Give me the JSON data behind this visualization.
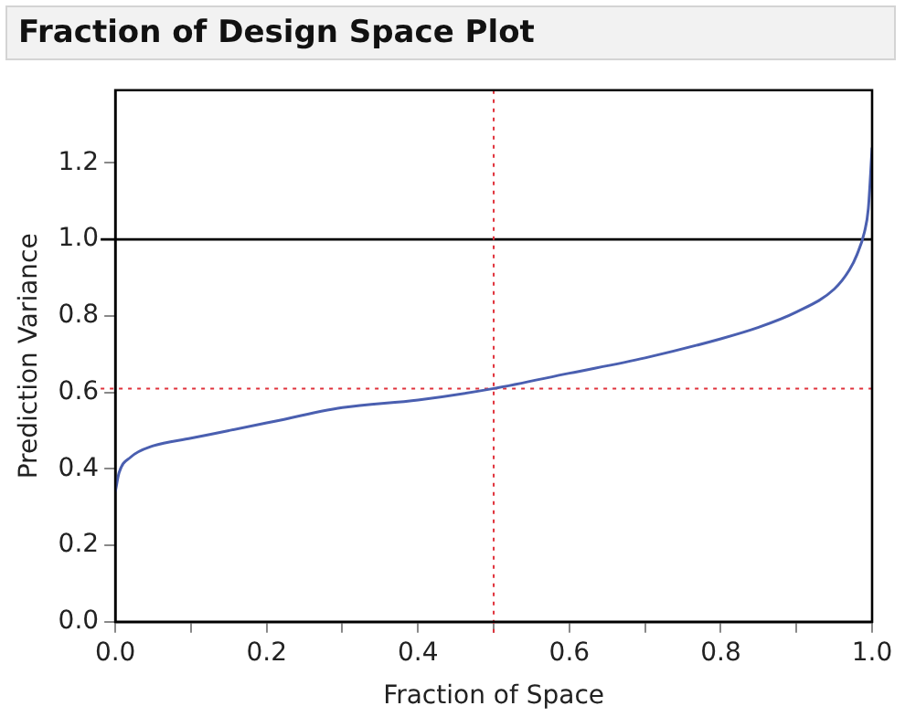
{
  "chart_data": {
    "type": "line",
    "title": "Fraction of Design Space Plot",
    "xlabel": "Fraction of Space",
    "ylabel": "Prediction Variance",
    "x": [
      0,
      0.005,
      0.02,
      0.05,
      0.1,
      0.15,
      0.2,
      0.3,
      0.4,
      0.5,
      0.6,
      0.7,
      0.8,
      0.85,
      0.9,
      0.95,
      0.97,
      0.98,
      0.99,
      0.995,
      1.0
    ],
    "series": [
      {
        "color": "#4a5fb0",
        "values": [
          0.34,
          0.39,
          0.43,
          0.46,
          0.48,
          0.5,
          0.52,
          0.56,
          0.58,
          0.61,
          0.65,
          0.69,
          0.74,
          0.77,
          0.81,
          0.87,
          0.92,
          0.96,
          1.02,
          1.08,
          1.24
        ]
      }
    ],
    "xlim": [
      0,
      1
    ],
    "ylim": [
      0,
      1.39
    ],
    "xticks": [
      {
        "value": 0,
        "label": "0.0"
      },
      {
        "value": 0.1,
        "label": null
      },
      0.2,
      {
        "value": 0.3,
        "label": null
      },
      0.4,
      {
        "value": 0.5,
        "label": null
      },
      0.6,
      {
        "value": 0.7,
        "label": null
      },
      0.8,
      {
        "value": 0.9,
        "label": null
      },
      {
        "value": 1,
        "label": "1.0"
      }
    ],
    "yticks": [
      {
        "value": 0,
        "label": "0.0"
      },
      0.2,
      0.4,
      0.6,
      0.8,
      {
        "value": 1,
        "label": "1.0"
      },
      1.2
    ],
    "ref_lines": [
      {
        "axis": "y",
        "value": 1.0,
        "color": "#000000",
        "line_style": "solid"
      },
      {
        "axis": "x",
        "value": 0.5,
        "color": "#e0303a",
        "line_style": "dotted"
      },
      {
        "axis": "y",
        "value": 0.61,
        "color": "#e0303a",
        "line_style": "dotted"
      }
    ],
    "grid": false,
    "legend": false,
    "marker": "none",
    "line_style": "solid"
  }
}
